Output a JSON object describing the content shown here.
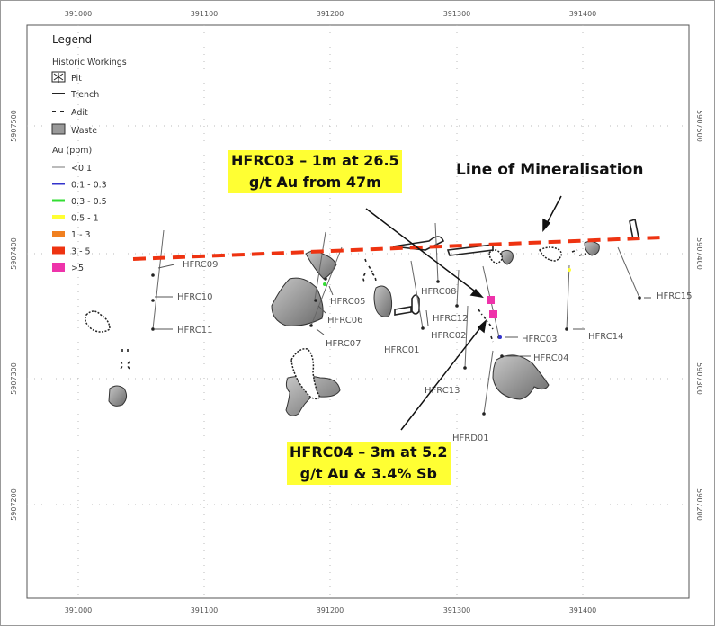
{
  "axes": {
    "x_ticks": [
      "391000",
      "391100",
      "391200",
      "391300",
      "391400"
    ],
    "y_ticks": [
      "5907500",
      "5907400",
      "5907300",
      "5907200"
    ]
  },
  "legend": {
    "title": "Legend",
    "historic_title": "Historic Workings",
    "historic": [
      "Pit",
      "Trench",
      "Adit",
      "Waste"
    ],
    "au_title": "Au (ppm)",
    "au_classes": [
      {
        "label": "<0.1",
        "color": "#777777"
      },
      {
        "label": "0.1 - 0.3",
        "color": "#3333cc"
      },
      {
        "label": "0.3 - 0.5",
        "color": "#33dd33"
      },
      {
        "label": "0.5 - 1",
        "color": "#ffff33"
      },
      {
        "label": "1 - 3",
        "color": "#f08020"
      },
      {
        "label": "3 - 5",
        "color": "#ee3311"
      },
      {
        "label": ">5",
        "color": "#ee33aa"
      }
    ]
  },
  "holes": [
    "HFRC09",
    "HFRC10",
    "HFRC11",
    "HFRC05",
    "HFRC06",
    "HFRC07",
    "HFRC08",
    "HFRC12",
    "HFRC02",
    "HFRC01",
    "HFRC03",
    "HFRC04",
    "HFRC13",
    "HFRD01",
    "HFRC14",
    "HFRC15"
  ],
  "annotations": {
    "hfrc03_line1": "HFRC03 – 1m at 26.5",
    "hfrc03_line2": "g/t Au from 47m",
    "hfrc04_line1": "HFRC04 – 3m at 5.2",
    "hfrc04_line2": "g/t Au & 3.4% Sb",
    "mineralisation": "Line of Mineralisation"
  },
  "colors": {
    "mineralisation_line": "#ee3311",
    "highlight": "#ffff33"
  }
}
